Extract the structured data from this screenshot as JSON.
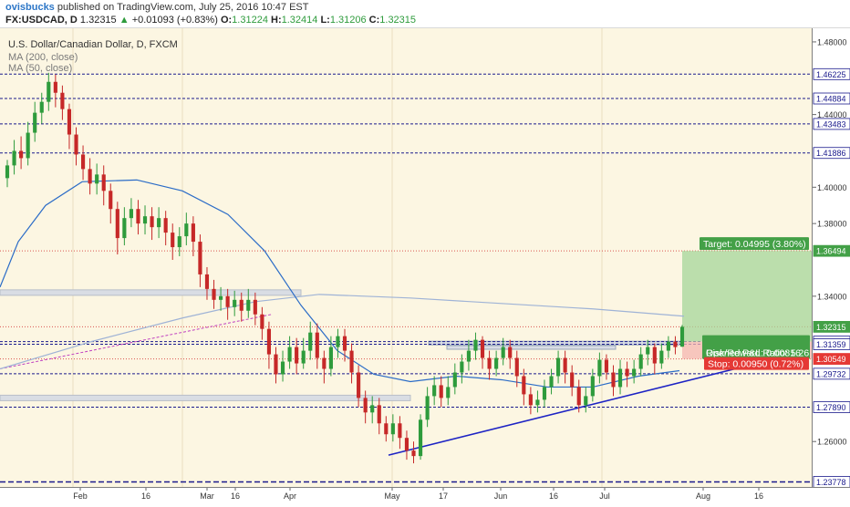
{
  "header": {
    "user": "ovisbucks",
    "published": "published on TradingView.com, July 25, 2016 10:47 EST",
    "symbol": "FX:USDCAD, D",
    "price": "1.32315",
    "change": "+0.01093 (+0.83%)",
    "open_label": "O:",
    "open": "1.31224",
    "high_label": "H:",
    "high": "1.32414",
    "low_label": "L:",
    "low": "1.31206",
    "close_label": "C:",
    "close": "1.32315"
  },
  "info": {
    "title": "U.S. Dollar/Canadian Dollar, D, FXCM",
    "ma200": "MA (200, close)",
    "ma50": "MA (50, close)"
  },
  "colors": {
    "up": "#2e9b3c",
    "down": "#c62828",
    "ma50": "#2b6cc7",
    "ma200": "#9fb3d6",
    "hline": "#1a1a8c",
    "target": "#43a047",
    "stop": "#e53935",
    "trend": "#1d23c4"
  },
  "chart_data": {
    "type": "candlestick",
    "symbol": "USDCAD",
    "ylim": [
      1.235,
      1.4875
    ],
    "y_ticks": [
      "1.48000",
      "1.44000",
      "1.40000",
      "1.38000",
      "1.34000",
      "1.26000"
    ],
    "x_ticks": [
      "Feb",
      "16",
      "Mar",
      "16",
      "Apr",
      "May",
      "17",
      "Jun",
      "16",
      "Jul",
      "Aug",
      "16"
    ],
    "price_levels": [
      {
        "label": "1.46225",
        "value": 1.46225
      },
      {
        "label": "1.44884",
        "value": 1.44884
      },
      {
        "label": "1.43483",
        "value": 1.43483
      },
      {
        "label": "1.41886",
        "value": 1.41886
      },
      {
        "label": "1.36494",
        "value": 1.36494
      },
      {
        "label": "1.32315",
        "value": 1.32315
      },
      {
        "label": "1.31499",
        "value": 1.31499
      },
      {
        "label": "1.31359",
        "value": 1.31359
      },
      {
        "label": "1.30549",
        "value": 1.30549
      },
      {
        "label": "1.29732",
        "value": 1.29732
      },
      {
        "label": "1.27890",
        "value": 1.2789
      },
      {
        "label": "1.23778",
        "value": 1.23778
      }
    ],
    "position": {
      "entry": 1.31499,
      "target": 1.36494,
      "stop": 1.30549,
      "target_label": "Target: 0.04995 (3.80%)",
      "pnl_label": "Opened P&L: 0.00816",
      "rr_label": "Risk/Reward Ratio: 5.26",
      "stop_label": "Stop: 0.00950 (0.72%)"
    },
    "ma50_points": [
      [
        0,
        1.345
      ],
      [
        20,
        1.37
      ],
      [
        50,
        1.39
      ],
      [
        90,
        1.403
      ],
      [
        150,
        1.404
      ],
      [
        200,
        1.398
      ],
      [
        250,
        1.385
      ],
      [
        290,
        1.365
      ],
      [
        330,
        1.335
      ],
      [
        370,
        1.31
      ],
      [
        410,
        1.297
      ],
      [
        450,
        1.293
      ],
      [
        500,
        1.296
      ],
      [
        550,
        1.294
      ],
      [
        600,
        1.29
      ],
      [
        650,
        1.29
      ],
      [
        700,
        1.296
      ],
      [
        745,
        1.299
      ]
    ],
    "ma200_points": [
      [
        0,
        1.3
      ],
      [
        100,
        1.315
      ],
      [
        200,
        1.328
      ],
      [
        280,
        1.337
      ],
      [
        350,
        1.341
      ],
      [
        450,
        1.339
      ],
      [
        550,
        1.336
      ],
      [
        650,
        1.333
      ],
      [
        750,
        1.329
      ]
    ],
    "candles": [
      [
        1.405,
        1.412,
        1.4,
        1.415
      ],
      [
        1.412,
        1.42,
        1.407,
        1.426
      ],
      [
        1.42,
        1.416,
        1.41,
        1.428
      ],
      [
        1.416,
        1.43,
        1.412,
        1.436
      ],
      [
        1.43,
        1.441,
        1.425,
        1.447
      ],
      [
        1.441,
        1.447,
        1.435,
        1.452
      ],
      [
        1.447,
        1.458,
        1.442,
        1.463
      ],
      [
        1.458,
        1.452,
        1.444,
        1.462
      ],
      [
        1.452,
        1.443,
        1.437,
        1.456
      ],
      [
        1.443,
        1.429,
        1.421,
        1.446
      ],
      [
        1.429,
        1.418,
        1.412,
        1.433
      ],
      [
        1.418,
        1.41,
        1.404,
        1.423
      ],
      [
        1.41,
        1.402,
        1.396,
        1.416
      ],
      [
        1.402,
        1.407,
        1.396,
        1.413
      ],
      [
        1.407,
        1.398,
        1.39,
        1.412
      ],
      [
        1.398,
        1.388,
        1.38,
        1.402
      ],
      [
        1.388,
        1.372,
        1.363,
        1.392
      ],
      [
        1.372,
        1.383,
        1.368,
        1.389
      ],
      [
        1.383,
        1.388,
        1.378,
        1.394
      ],
      [
        1.388,
        1.38,
        1.374,
        1.393
      ],
      [
        1.38,
        1.384,
        1.374,
        1.39
      ],
      [
        1.384,
        1.378,
        1.371,
        1.389
      ],
      [
        1.378,
        1.383,
        1.372,
        1.389
      ],
      [
        1.383,
        1.375,
        1.368,
        1.387
      ],
      [
        1.375,
        1.367,
        1.36,
        1.38
      ],
      [
        1.367,
        1.373,
        1.362,
        1.378
      ],
      [
        1.373,
        1.38,
        1.368,
        1.386
      ],
      [
        1.38,
        1.37,
        1.362,
        1.384
      ],
      [
        1.37,
        1.352,
        1.345,
        1.374
      ],
      [
        1.352,
        1.344,
        1.338,
        1.356
      ],
      [
        1.344,
        1.338,
        1.333,
        1.349
      ],
      [
        1.338,
        1.34,
        1.332,
        1.345
      ],
      [
        1.34,
        1.334,
        1.327,
        1.344
      ],
      [
        1.334,
        1.338,
        1.329,
        1.343
      ],
      [
        1.338,
        1.332,
        1.326,
        1.342
      ],
      [
        1.332,
        1.338,
        1.328,
        1.344
      ],
      [
        1.338,
        1.33,
        1.324,
        1.342
      ],
      [
        1.33,
        1.322,
        1.316,
        1.334
      ],
      [
        1.322,
        1.308,
        1.3,
        1.326
      ],
      [
        1.308,
        1.297,
        1.292,
        1.312
      ],
      [
        1.297,
        1.304,
        1.293,
        1.31
      ],
      [
        1.304,
        1.312,
        1.3,
        1.318
      ],
      [
        1.312,
        1.303,
        1.297,
        1.317
      ],
      [
        1.303,
        1.31,
        1.3,
        1.317
      ],
      [
        1.31,
        1.32,
        1.305,
        1.326
      ],
      [
        1.32,
        1.306,
        1.3,
        1.325
      ],
      [
        1.306,
        1.3,
        1.292,
        1.31
      ],
      [
        1.3,
        1.312,
        1.296,
        1.318
      ],
      [
        1.312,
        1.318,
        1.306,
        1.322
      ],
      [
        1.318,
        1.31,
        1.304,
        1.322
      ],
      [
        1.31,
        1.298,
        1.292,
        1.314
      ],
      [
        1.298,
        1.284,
        1.279,
        1.302
      ],
      [
        1.284,
        1.276,
        1.27,
        1.288
      ],
      [
        1.276,
        1.28,
        1.27,
        1.285
      ],
      [
        1.28,
        1.27,
        1.264,
        1.284
      ],
      [
        1.27,
        1.264,
        1.26,
        1.274
      ],
      [
        1.264,
        1.27,
        1.26,
        1.275
      ],
      [
        1.27,
        1.262,
        1.256,
        1.274
      ],
      [
        1.262,
        1.255,
        1.25,
        1.266
      ],
      [
        1.255,
        1.252,
        1.248,
        1.26
      ],
      [
        1.252,
        1.272,
        1.25,
        1.275
      ],
      [
        1.272,
        1.285,
        1.268,
        1.29
      ],
      [
        1.285,
        1.291,
        1.28,
        1.296
      ],
      [
        1.291,
        1.284,
        1.279,
        1.296
      ],
      [
        1.284,
        1.29,
        1.28,
        1.296
      ],
      [
        1.29,
        1.298,
        1.286,
        1.303
      ],
      [
        1.298,
        1.304,
        1.292,
        1.308
      ],
      [
        1.304,
        1.31,
        1.299,
        1.316
      ],
      [
        1.31,
        1.316,
        1.305,
        1.32
      ],
      [
        1.316,
        1.306,
        1.3,
        1.318
      ],
      [
        1.306,
        1.3,
        1.294,
        1.31
      ],
      [
        1.3,
        1.306,
        1.296,
        1.31
      ],
      [
        1.306,
        1.312,
        1.302,
        1.317
      ],
      [
        1.312,
        1.306,
        1.3,
        1.316
      ],
      [
        1.306,
        1.296,
        1.29,
        1.31
      ],
      [
        1.296,
        1.286,
        1.28,
        1.3
      ],
      [
        1.286,
        1.28,
        1.275,
        1.29
      ],
      [
        1.28,
        1.283,
        1.276,
        1.288
      ],
      [
        1.283,
        1.29,
        1.279,
        1.294
      ],
      [
        1.29,
        1.296,
        1.286,
        1.3
      ],
      [
        1.296,
        1.306,
        1.292,
        1.31
      ],
      [
        1.306,
        1.298,
        1.292,
        1.31
      ],
      [
        1.298,
        1.29,
        1.285,
        1.302
      ],
      [
        1.29,
        1.28,
        1.276,
        1.294
      ],
      [
        1.28,
        1.285,
        1.276,
        1.29
      ],
      [
        1.285,
        1.296,
        1.282,
        1.3
      ],
      [
        1.296,
        1.305,
        1.292,
        1.309
      ],
      [
        1.305,
        1.298,
        1.294,
        1.308
      ],
      [
        1.298,
        1.29,
        1.285,
        1.302
      ],
      [
        1.29,
        1.3,
        1.286,
        1.305
      ],
      [
        1.3,
        1.296,
        1.29,
        1.304
      ],
      [
        1.296,
        1.3,
        1.292,
        1.305
      ],
      [
        1.3,
        1.308,
        1.296,
        1.312
      ],
      [
        1.308,
        1.312,
        1.302,
        1.316
      ],
      [
        1.312,
        1.303,
        1.297,
        1.314
      ],
      [
        1.303,
        1.31,
        1.3,
        1.314
      ],
      [
        1.31,
        1.315,
        1.306,
        1.318
      ],
      [
        1.315,
        1.312,
        1.308,
        1.318
      ],
      [
        1.31224,
        1.32315,
        1.31206,
        1.32414
      ]
    ]
  }
}
